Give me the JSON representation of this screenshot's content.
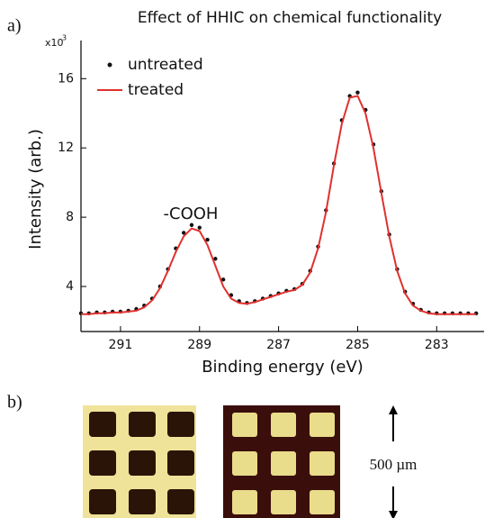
{
  "panel_labels": [
    "a)",
    "b)"
  ],
  "chart_data": {
    "type": "line",
    "title": "Effect of HHIC on chemical functionality",
    "x_label": "Binding energy (eV)",
    "y_label": "Intensity (arb.)",
    "y_multiplier": "x10",
    "y_multiplier_exp": "3",
    "annotation": "-COOH",
    "x": [
      292.0,
      291.8,
      291.6,
      291.4,
      291.2,
      291.0,
      290.8,
      290.6,
      290.4,
      290.2,
      290.0,
      289.8,
      289.6,
      289.4,
      289.2,
      289.0,
      288.8,
      288.6,
      288.4,
      288.2,
      288.0,
      287.8,
      287.6,
      287.4,
      287.2,
      287.0,
      286.8,
      286.6,
      286.4,
      286.2,
      286.0,
      285.8,
      285.6,
      285.4,
      285.2,
      285.0,
      284.8,
      284.6,
      284.4,
      284.2,
      284.0,
      283.8,
      283.6,
      283.4,
      283.2,
      283.0,
      282.8,
      282.6,
      282.4,
      282.2,
      282.0
    ],
    "series": [
      {
        "name": "untreated",
        "color": "#111111",
        "style": "dots",
        "values": [
          2.45,
          2.45,
          2.5,
          2.5,
          2.55,
          2.55,
          2.6,
          2.7,
          2.9,
          3.3,
          4.0,
          5.0,
          6.2,
          7.1,
          7.55,
          7.4,
          6.7,
          5.6,
          4.4,
          3.5,
          3.15,
          3.05,
          3.15,
          3.3,
          3.45,
          3.6,
          3.75,
          3.85,
          4.15,
          4.9,
          6.3,
          8.4,
          11.1,
          13.6,
          15.0,
          15.2,
          14.2,
          12.2,
          9.5,
          7.0,
          5.0,
          3.7,
          3.0,
          2.65,
          2.5,
          2.45,
          2.45,
          2.45,
          2.45,
          2.45,
          2.45
        ]
      },
      {
        "name": "treated",
        "color": "#e0312e",
        "style": "line",
        "values": [
          2.4,
          2.4,
          2.45,
          2.45,
          2.5,
          2.5,
          2.55,
          2.6,
          2.8,
          3.2,
          3.9,
          4.9,
          6.0,
          6.9,
          7.35,
          7.2,
          6.4,
          5.2,
          4.0,
          3.3,
          3.05,
          3.0,
          3.1,
          3.25,
          3.4,
          3.55,
          3.7,
          3.8,
          4.1,
          4.8,
          6.2,
          8.3,
          11.0,
          13.4,
          14.9,
          15.0,
          14.0,
          12.0,
          9.4,
          6.9,
          4.9,
          3.6,
          2.9,
          2.6,
          2.45,
          2.4,
          2.4,
          2.4,
          2.4,
          2.4,
          2.4
        ]
      }
    ],
    "xlim": [
      292.0,
      281.8
    ],
    "xticks": [
      291,
      289,
      287,
      285,
      283
    ],
    "ylim": [
      1.4,
      18.2
    ],
    "yticks": [
      4,
      8,
      12,
      16
    ]
  },
  "scale_bar": {
    "label": "500 µm"
  }
}
